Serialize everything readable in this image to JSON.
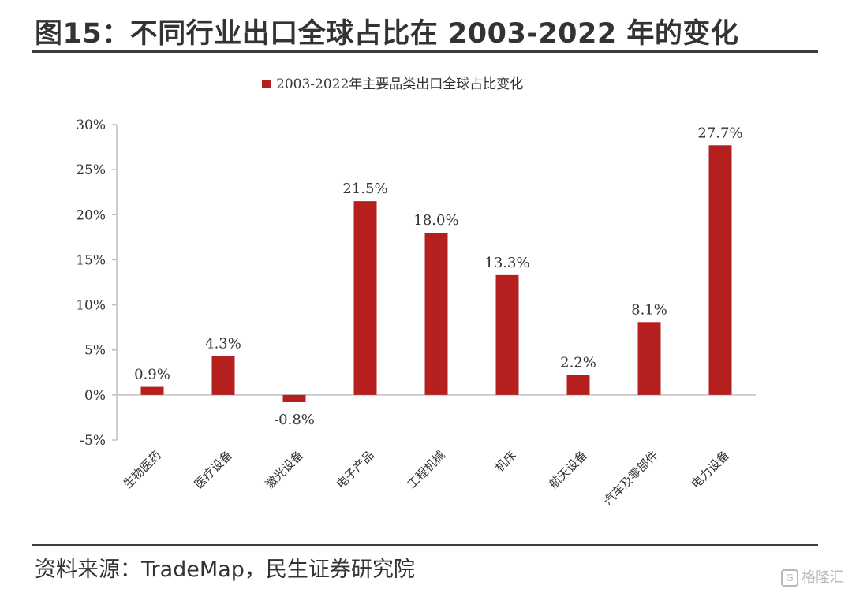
{
  "figure_title": "图15：不同行业出口全球占比在 2003-2022 年的变化",
  "source": "资料来源：TradeMap，民生证券研究院",
  "watermark": "格隆汇",
  "chart_data": {
    "type": "bar",
    "legend": "2003-2022年主要品类出口全球占比变化",
    "legend_position": "top-center",
    "categories": [
      "生物医药",
      "医疗设备",
      "激光设备",
      "电子产品",
      "工程机械",
      "机床",
      "航天设备",
      "汽车及零部件",
      "电力设备"
    ],
    "series": [
      {
        "name": "2003-2022年主要品类出口全球占比变化",
        "values": [
          0.9,
          4.3,
          -0.8,
          21.5,
          18.0,
          13.3,
          2.2,
          8.1,
          27.7
        ],
        "color": "#b5201f"
      }
    ],
    "data_labels": [
      "0.9%",
      "4.3%",
      "-0.8%",
      "21.5%",
      "18.0%",
      "13.3%",
      "2.2%",
      "8.1%",
      "27.7%"
    ],
    "y_ticks": [
      "30%",
      "25%",
      "20%",
      "15%",
      "10%",
      "5%",
      "0%",
      "-5%"
    ],
    "ylim": [
      -5,
      30
    ],
    "grid": false,
    "axis_color": "#bfbfbf"
  }
}
